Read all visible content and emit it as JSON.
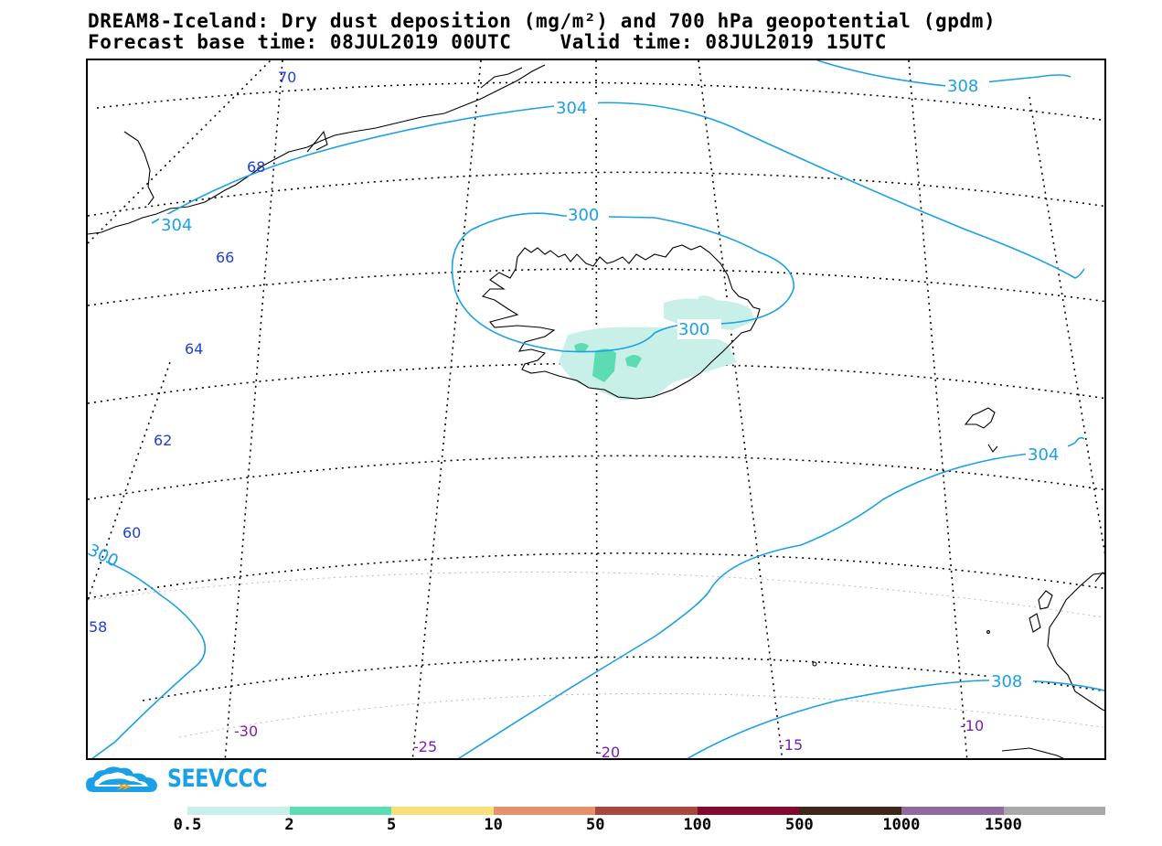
{
  "title": {
    "line1": "DREAM8-Iceland: Dry dust deposition (mg/m²) and 700 hPa geopotential (gpdm)",
    "line2": "Forecast base time: 08JUL2019 00UTC    Valid time: 08JUL2019 15UTC"
  },
  "map": {
    "region": "Iceland",
    "lat_labels": [
      "70",
      "68",
      "66",
      "64",
      "62",
      "60",
      "58"
    ],
    "lon_labels": [
      "-30",
      "-25",
      "-20",
      "-15",
      "-10"
    ],
    "contours": [
      {
        "value": "304",
        "label": "304"
      },
      {
        "value": "308",
        "label": "308"
      },
      {
        "value": "300",
        "label": "300"
      },
      {
        "value": "304",
        "label": "304"
      },
      {
        "value": "300",
        "label": "300"
      },
      {
        "value": "300",
        "label": "300"
      },
      {
        "value": "304",
        "label": "304"
      },
      {
        "value": "308",
        "label": "308"
      }
    ],
    "colors": {
      "contour": "#1aa0e6",
      "coast": "#000000",
      "dust_light": "#c8f0e8",
      "dust_mid": "#5ddcb4"
    }
  },
  "logo": {
    "text": "SEEVCCC"
  },
  "legend": {
    "colors": [
      "#c8f0e8",
      "#5ddcb4",
      "#f7e27a",
      "#e8906a",
      "#a8483c",
      "#820a2e",
      "#3d2718",
      "#906a9c",
      "#a8a8a8"
    ],
    "labels": [
      "0.5",
      "2",
      "5",
      "10",
      "50",
      "100",
      "500",
      "1000",
      "1500"
    ]
  }
}
